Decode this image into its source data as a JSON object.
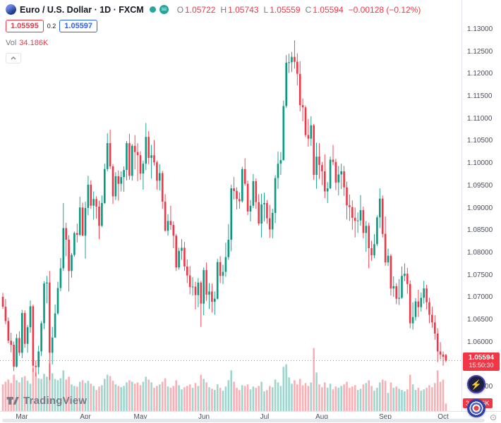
{
  "header": {
    "symbol_title": "Euro / U.S. Dollar · 1D · FXCM",
    "ohlc": {
      "o_label": "O",
      "o": "1.05722",
      "h_label": "H",
      "h": "1.05743",
      "l_label": "L",
      "l": "1.05559",
      "c_label": "C",
      "c": "1.05594",
      "change": "−0.00128 (−0.12%)"
    },
    "sell_price": "1.05595",
    "spread": "0.2",
    "buy_price": "1.05597",
    "vol_label": "Vol",
    "vol_value": "34.186K"
  },
  "badges": {
    "price": "1.05594",
    "countdown": "15:50:30",
    "volume": "34.186K"
  },
  "footer": {
    "logo_text": "TradingView"
  },
  "chart_data": {
    "type": "candlestick",
    "title": "Euro / U.S. Dollar · 1D · FXCM",
    "last_price": 1.05594,
    "price_axis_range": [
      1.045,
      1.137
    ],
    "grid": false,
    "candle_format": "[open, high, low, close, volume_K]",
    "colors": {
      "up": "#089981",
      "down": "#F23645",
      "vol_up": "rgba(8,153,129,0.4)",
      "vol_down": "rgba(242,54,69,0.4)"
    },
    "price_ticks": [
      "1.13000",
      "1.12500",
      "1.12000",
      "1.11500",
      "1.11000",
      "1.10500",
      "1.10000",
      "1.09500",
      "1.09000",
      "1.08500",
      "1.08000",
      "1.07500",
      "1.07000",
      "1.06500",
      "1.06000",
      "1.05500",
      "1.05000"
    ],
    "time_ticks": [
      {
        "label": "Mar",
        "i": 7
      },
      {
        "label": "Apr",
        "i": 30
      },
      {
        "label": "May",
        "i": 50
      },
      {
        "label": "Jun",
        "i": 73
      },
      {
        "label": "Jul",
        "i": 95
      },
      {
        "label": "Aug",
        "i": 116
      },
      {
        "label": "Sep",
        "i": 139
      },
      {
        "label": "Oct",
        "i": 160
      }
    ],
    "candles": [
      [
        1.0702,
        1.0711,
        1.0675,
        1.068,
        122
      ],
      [
        1.068,
        1.0697,
        1.0641,
        1.0648,
        134
      ],
      [
        1.0648,
        1.0656,
        1.0598,
        1.0604,
        144
      ],
      [
        1.0604,
        1.0622,
        1.0578,
        1.0595,
        128
      ],
      [
        1.0595,
        1.0602,
        1.0536,
        1.0546,
        166
      ],
      [
        1.0546,
        1.0619,
        1.0544,
        1.061,
        141
      ],
      [
        1.061,
        1.0625,
        1.057,
        1.0577,
        131
      ],
      [
        1.0577,
        1.0673,
        1.0565,
        1.0666,
        154
      ],
      [
        1.0666,
        1.0672,
        1.0588,
        1.0597,
        160
      ],
      [
        1.0597,
        1.0639,
        1.0577,
        1.0634,
        138
      ],
      [
        1.0634,
        1.0694,
        1.0622,
        1.0681,
        125
      ],
      [
        1.0681,
        1.0685,
        1.0534,
        1.0548,
        195
      ],
      [
        1.0548,
        1.056,
        1.0524,
        1.0545,
        176
      ],
      [
        1.0545,
        1.0593,
        1.0529,
        1.058,
        150
      ],
      [
        1.058,
        1.0648,
        1.057,
        1.0643,
        147
      ],
      [
        1.0643,
        1.0737,
        1.063,
        1.0732,
        170
      ],
      [
        1.0732,
        1.0749,
        1.0688,
        1.0734,
        157
      ],
      [
        1.0734,
        1.076,
        1.0516,
        1.0577,
        218
      ],
      [
        1.0577,
        1.0635,
        1.0551,
        1.0611,
        173
      ],
      [
        1.0611,
        1.0685,
        1.0611,
        1.0665,
        147
      ],
      [
        1.0665,
        1.0736,
        1.0662,
        1.0722,
        141
      ],
      [
        1.0722,
        1.0789,
        1.0715,
        1.0766,
        150
      ],
      [
        1.0766,
        1.0912,
        1.076,
        1.0856,
        186
      ],
      [
        1.0856,
        1.0868,
        1.0793,
        1.083,
        144
      ],
      [
        1.083,
        1.084,
        1.0714,
        1.076,
        157
      ],
      [
        1.076,
        1.08,
        1.0745,
        1.0796,
        122
      ],
      [
        1.0796,
        1.0848,
        1.0792,
        1.0845,
        115
      ],
      [
        1.0845,
        1.0866,
        1.0824,
        1.0841,
        112
      ],
      [
        1.0841,
        1.0926,
        1.0838,
        1.0902,
        134
      ],
      [
        1.0902,
        1.0913,
        1.0838,
        1.0839,
        141
      ],
      [
        1.0839,
        1.0915,
        1.0788,
        1.0901,
        128
      ],
      [
        1.0901,
        1.0973,
        1.0885,
        1.0953,
        138
      ],
      [
        1.0953,
        1.0963,
        1.0899,
        1.0906,
        125
      ],
      [
        1.0906,
        1.0938,
        1.0875,
        1.0921,
        115
      ],
      [
        1.0921,
        1.0927,
        1.0877,
        1.0904,
        96
      ],
      [
        1.0904,
        1.0917,
        1.0831,
        1.0861,
        112
      ],
      [
        1.0861,
        1.0929,
        1.0858,
        1.0912,
        118
      ],
      [
        1.0912,
        1.1,
        1.091,
        1.0988,
        147
      ],
      [
        1.0988,
        1.1068,
        1.0983,
        1.1046,
        166
      ],
      [
        1.1046,
        1.1076,
        1.0988,
        1.0994,
        160
      ],
      [
        1.0994,
        1.0999,
        1.091,
        1.0927,
        138
      ],
      [
        1.0927,
        1.0981,
        1.0919,
        1.0972,
        122
      ],
      [
        1.0972,
        1.0985,
        1.0917,
        1.0955,
        115
      ],
      [
        1.0955,
        1.0983,
        1.0938,
        1.097,
        109
      ],
      [
        1.097,
        1.0994,
        1.0937,
        1.0986,
        115
      ],
      [
        1.0986,
        1.1051,
        1.0963,
        1.1046,
        131
      ],
      [
        1.1046,
        1.1067,
        1.0964,
        1.0973,
        141
      ],
      [
        1.0973,
        1.1044,
        1.0962,
        1.104,
        134
      ],
      [
        1.104,
        1.1064,
        1.0987,
        1.1026,
        125
      ],
      [
        1.1026,
        1.1046,
        1.0961,
        1.1019,
        131
      ],
      [
        1.1019,
        1.1028,
        1.0964,
        1.0978,
        118
      ],
      [
        1.0978,
        1.1007,
        1.0942,
        1.1,
        134
      ],
      [
        1.1,
        1.1091,
        1.0986,
        1.106,
        157
      ],
      [
        1.106,
        1.1073,
        1.0999,
        1.1013,
        144
      ],
      [
        1.1013,
        1.1042,
        1.0967,
        1.1019,
        131
      ],
      [
        1.1019,
        1.1053,
        1.0996,
        1.1003,
        106
      ],
      [
        1.1003,
        1.1007,
        1.0942,
        1.0962,
        115
      ],
      [
        1.0962,
        1.0999,
        1.094,
        1.0979,
        122
      ],
      [
        1.0979,
        1.0984,
        1.0899,
        1.0915,
        134
      ],
      [
        1.0915,
        1.0932,
        1.0848,
        1.085,
        150
      ],
      [
        1.085,
        1.0887,
        1.0839,
        1.0872,
        112
      ],
      [
        1.0872,
        1.0906,
        1.0852,
        1.0863,
        106
      ],
      [
        1.0863,
        1.0871,
        1.0811,
        1.0839,
        115
      ],
      [
        1.0839,
        1.0843,
        1.076,
        1.0768,
        141
      ],
      [
        1.0768,
        1.0812,
        1.0763,
        1.0805,
        118
      ],
      [
        1.0805,
        1.0831,
        1.0785,
        1.0812,
        99
      ],
      [
        1.0812,
        1.0825,
        1.076,
        1.077,
        109
      ],
      [
        1.077,
        1.0786,
        1.0733,
        1.075,
        115
      ],
      [
        1.075,
        1.0771,
        1.0708,
        1.0724,
        122
      ],
      [
        1.0724,
        1.0746,
        1.0705,
        1.0725,
        106
      ],
      [
        1.0725,
        1.0736,
        1.0674,
        1.0706,
        128
      ],
      [
        1.0706,
        1.0744,
        1.0679,
        1.0734,
        115
      ],
      [
        1.0734,
        1.0738,
        1.0635,
        1.0687,
        166
      ],
      [
        1.0687,
        1.0768,
        1.0661,
        1.0762,
        147
      ],
      [
        1.0762,
        1.0779,
        1.0693,
        1.0707,
        131
      ],
      [
        1.0707,
        1.0733,
        1.0675,
        1.0714,
        109
      ],
      [
        1.0714,
        1.0732,
        1.0667,
        1.0691,
        102
      ],
      [
        1.0691,
        1.0714,
        1.0662,
        1.0698,
        96
      ],
      [
        1.0698,
        1.0787,
        1.0696,
        1.078,
        122
      ],
      [
        1.078,
        1.0793,
        1.0733,
        1.0749,
        106
      ],
      [
        1.0749,
        1.0774,
        1.0731,
        1.0758,
        93
      ],
      [
        1.0758,
        1.0823,
        1.0747,
        1.0791,
        112
      ],
      [
        1.0791,
        1.0865,
        1.0785,
        1.083,
        141
      ],
      [
        1.083,
        1.0953,
        1.0804,
        1.0945,
        186
      ],
      [
        1.0945,
        1.097,
        1.092,
        1.0939,
        134
      ],
      [
        1.0939,
        1.0947,
        1.0898,
        1.0921,
        106
      ],
      [
        1.0921,
        1.0936,
        1.0899,
        1.0916,
        96
      ],
      [
        1.0916,
        1.0993,
        1.0913,
        1.0988,
        118
      ],
      [
        1.0988,
        1.1012,
        1.0951,
        1.0955,
        115
      ],
      [
        1.0955,
        1.0962,
        1.0885,
        1.0893,
        122
      ],
      [
        1.0893,
        1.0919,
        1.0871,
        1.0906,
        99
      ],
      [
        1.0906,
        1.0977,
        1.0901,
        1.0961,
        112
      ],
      [
        1.0961,
        1.0967,
        1.0899,
        1.0914,
        106
      ],
      [
        1.0914,
        1.0932,
        1.0862,
        1.0866,
        115
      ],
      [
        1.0866,
        1.0933,
        1.0835,
        1.0909,
        134
      ],
      [
        1.0909,
        1.0935,
        1.0871,
        1.0912,
        90
      ],
      [
        1.0912,
        1.0919,
        1.0866,
        1.0878,
        96
      ],
      [
        1.0878,
        1.0908,
        1.0834,
        1.0853,
        115
      ],
      [
        1.0853,
        1.0899,
        1.0833,
        1.089,
        109
      ],
      [
        1.089,
        1.0974,
        1.0867,
        1.0968,
        144
      ],
      [
        1.0968,
        1.1027,
        1.0944,
        1.1,
        131
      ],
      [
        1.1,
        1.1026,
        1.0975,
        1.1008,
        115
      ],
      [
        1.1008,
        1.1141,
        1.1007,
        1.1129,
        202
      ],
      [
        1.1129,
        1.1243,
        1.1125,
        1.1226,
        214
      ],
      [
        1.1226,
        1.1246,
        1.1203,
        1.1227,
        154
      ],
      [
        1.1227,
        1.125,
        1.1205,
        1.1239,
        125
      ],
      [
        1.1239,
        1.1276,
        1.1213,
        1.1228,
        141
      ],
      [
        1.1228,
        1.1247,
        1.1175,
        1.1201,
        122
      ],
      [
        1.1201,
        1.1229,
        1.1117,
        1.1131,
        147
      ],
      [
        1.1131,
        1.1146,
        1.1095,
        1.1126,
        118
      ],
      [
        1.1126,
        1.113,
        1.1059,
        1.1064,
        128
      ],
      [
        1.1064,
        1.11,
        1.1038,
        1.1056,
        115
      ],
      [
        1.1056,
        1.1106,
        1.104,
        1.1086,
        131
      ],
      [
        1.1086,
        1.1089,
        1.0964,
        1.0975,
        288
      ],
      [
        1.0975,
        1.1047,
        1.0944,
        1.1016,
        176
      ],
      [
        1.1016,
        1.1046,
        1.0966,
        1.0997,
        122
      ],
      [
        1.0997,
        1.1004,
        1.0952,
        1.0983,
        109
      ],
      [
        1.0983,
        1.1021,
        1.0923,
        1.0938,
        131
      ],
      [
        1.0938,
        1.0959,
        1.0912,
        1.0945,
        106
      ],
      [
        1.0945,
        1.1016,
        1.0943,
        1.1009,
        125
      ],
      [
        1.1009,
        1.1042,
        1.0997,
        1.1004,
        99
      ],
      [
        1.1004,
        1.1011,
        1.0941,
        1.0958,
        112
      ],
      [
        1.0958,
        1.0995,
        1.0929,
        1.0976,
        106
      ],
      [
        1.0976,
        1.1,
        1.0943,
        1.0983,
        115
      ],
      [
        1.0983,
        1.0995,
        1.0928,
        1.0947,
        122
      ],
      [
        1.0947,
        1.096,
        1.0875,
        1.0907,
        134
      ],
      [
        1.0907,
        1.0931,
        1.0872,
        1.0903,
        106
      ],
      [
        1.0903,
        1.0918,
        1.0852,
        1.0879,
        112
      ],
      [
        1.0879,
        1.0902,
        1.0835,
        1.0872,
        118
      ],
      [
        1.0872,
        1.0891,
        1.0845,
        1.0873,
        96
      ],
      [
        1.0873,
        1.093,
        1.0861,
        1.0896,
        102
      ],
      [
        1.0896,
        1.0904,
        1.0833,
        1.0845,
        122
      ],
      [
        1.0845,
        1.0872,
        1.0803,
        1.0861,
        128
      ],
      [
        1.0861,
        1.0868,
        1.0766,
        1.0811,
        141
      ],
      [
        1.0811,
        1.0828,
        1.0783,
        1.0795,
        115
      ],
      [
        1.0795,
        1.0842,
        1.0789,
        1.082,
        93
      ],
      [
        1.082,
        1.0884,
        1.0816,
        1.088,
        106
      ],
      [
        1.088,
        1.0945,
        1.0856,
        1.0922,
        131
      ],
      [
        1.0922,
        1.0929,
        1.0835,
        1.0843,
        144
      ],
      [
        1.0843,
        1.0882,
        1.0772,
        1.0779,
        138
      ],
      [
        1.0779,
        1.081,
        1.0771,
        1.0794,
        83
      ],
      [
        1.0794,
        1.0798,
        1.0705,
        1.0721,
        131
      ],
      [
        1.0721,
        1.0748,
        1.0702,
        1.0726,
        106
      ],
      [
        1.0726,
        1.0733,
        1.0686,
        1.0698,
        112
      ],
      [
        1.0698,
        1.0742,
        1.0684,
        1.07,
        102
      ],
      [
        1.07,
        1.077,
        1.0698,
        1.0749,
        96
      ],
      [
        1.0749,
        1.0777,
        1.0737,
        1.0754,
        90
      ],
      [
        1.0754,
        1.0767,
        1.0709,
        1.0731,
        99
      ],
      [
        1.0731,
        1.0739,
        1.0632,
        1.0643,
        166
      ],
      [
        1.0643,
        1.069,
        1.0629,
        1.0657,
        122
      ],
      [
        1.0657,
        1.0699,
        1.0649,
        1.0692,
        96
      ],
      [
        1.0692,
        1.0718,
        1.0657,
        1.0679,
        106
      ],
      [
        1.0679,
        1.0712,
        1.0669,
        1.07,
        93
      ],
      [
        1.07,
        1.0738,
        1.0687,
        1.0721,
        99
      ],
      [
        1.0721,
        1.0729,
        1.0674,
        1.069,
        106
      ],
      [
        1.069,
        1.07,
        1.0643,
        1.0662,
        118
      ],
      [
        1.0662,
        1.068,
        1.0633,
        1.0645,
        109
      ],
      [
        1.0645,
        1.0661,
        1.0606,
        1.062,
        128
      ],
      [
        1.062,
        1.0632,
        1.0556,
        1.058,
        186
      ],
      [
        1.058,
        1.0601,
        1.0562,
        1.0573,
        134
      ],
      [
        1.0573,
        1.058,
        1.0548,
        1.0568,
        144
      ],
      [
        1.05722,
        1.05743,
        1.05559,
        1.05594,
        34.186
      ]
    ]
  }
}
